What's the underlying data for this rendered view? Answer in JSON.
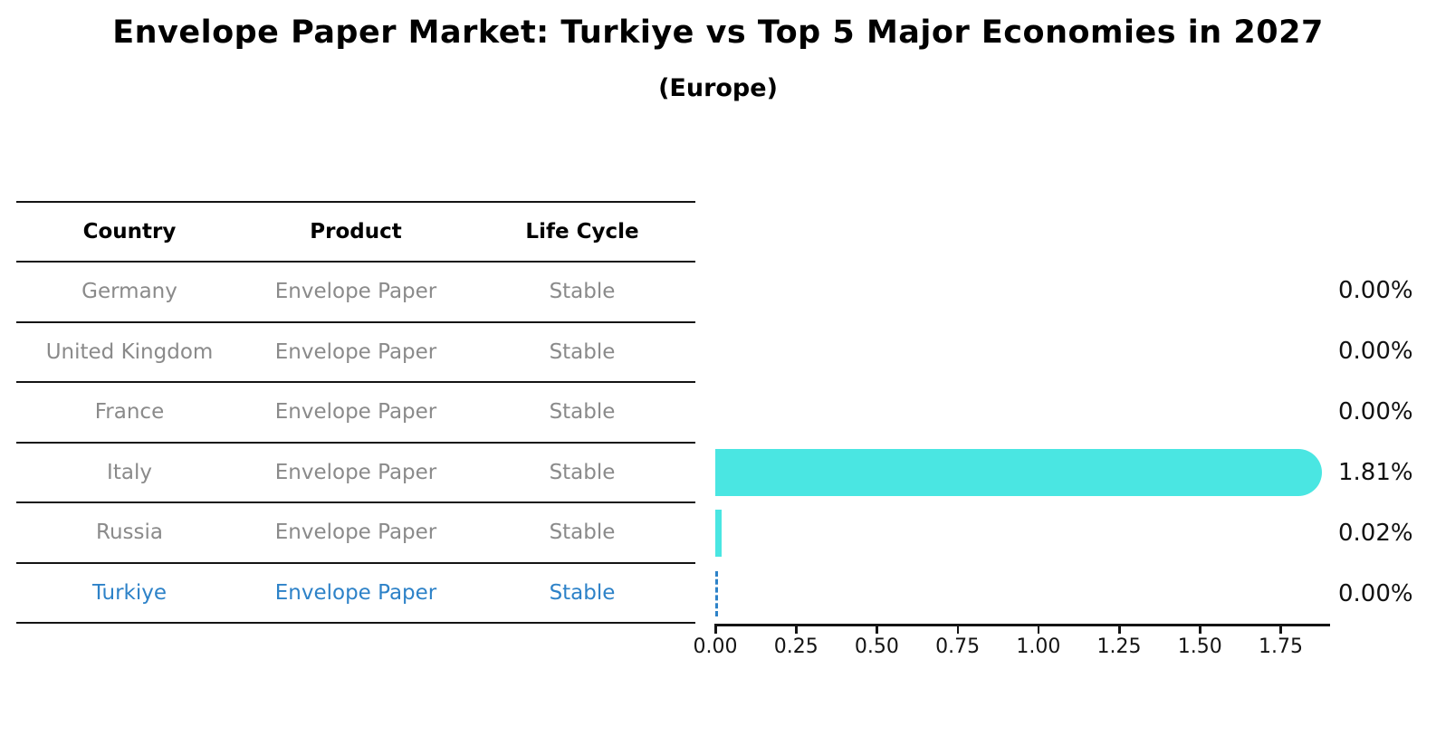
{
  "header": {
    "title": "Envelope Paper Market: Turkiye vs Top 5 Major Economies in 2027",
    "subtitle": "(Europe)"
  },
  "table": {
    "columns": [
      "Country",
      "Product",
      "Life Cycle"
    ],
    "rows": [
      {
        "country": "Germany",
        "product": "Envelope Paper",
        "life_cycle": "Stable"
      },
      {
        "country": "United Kingdom",
        "product": "Envelope Paper",
        "life_cycle": "Stable"
      },
      {
        "country": "France",
        "product": "Envelope Paper",
        "life_cycle": "Stable"
      },
      {
        "country": "Italy",
        "product": "Envelope Paper",
        "life_cycle": "Stable"
      },
      {
        "country": "Russia",
        "product": "Envelope Paper",
        "life_cycle": "Stable"
      },
      {
        "country": "Turkiye",
        "product": "Envelope Paper",
        "life_cycle": "Stable"
      }
    ],
    "highlight_row": "Turkiye"
  },
  "chart_data": {
    "type": "bar",
    "orientation": "horizontal",
    "title": "Envelope Paper Market: Turkiye vs Top 5 Major Economies in 2027",
    "subtitle": "(Europe)",
    "categories": [
      "Germany",
      "United Kingdom",
      "France",
      "Italy",
      "Russia",
      "Turkiye"
    ],
    "values": [
      0.0,
      0.0,
      0.0,
      1.81,
      0.02,
      0.0
    ],
    "value_labels": [
      "0.00%",
      "0.00%",
      "0.00%",
      "1.81%",
      "0.02%",
      "0.00%"
    ],
    "unit": "%",
    "xlim": [
      0,
      1.9
    ],
    "x_ticks": [
      0,
      0.25,
      0.5,
      0.75,
      1.0,
      1.25,
      1.5,
      1.75
    ],
    "x_tick_labels": [
      "0.00",
      "0.25",
      "0.50",
      "0.75",
      "1.00",
      "1.25",
      "1.50",
      "1.75"
    ],
    "highlight_index": 5,
    "grid": false,
    "legend": false
  },
  "colors": {
    "background": "#ffffff",
    "bar": "#4ae6e2",
    "highlight": "#2d82c8",
    "table_text": "#8a8a8a",
    "rule": "#141414"
  }
}
